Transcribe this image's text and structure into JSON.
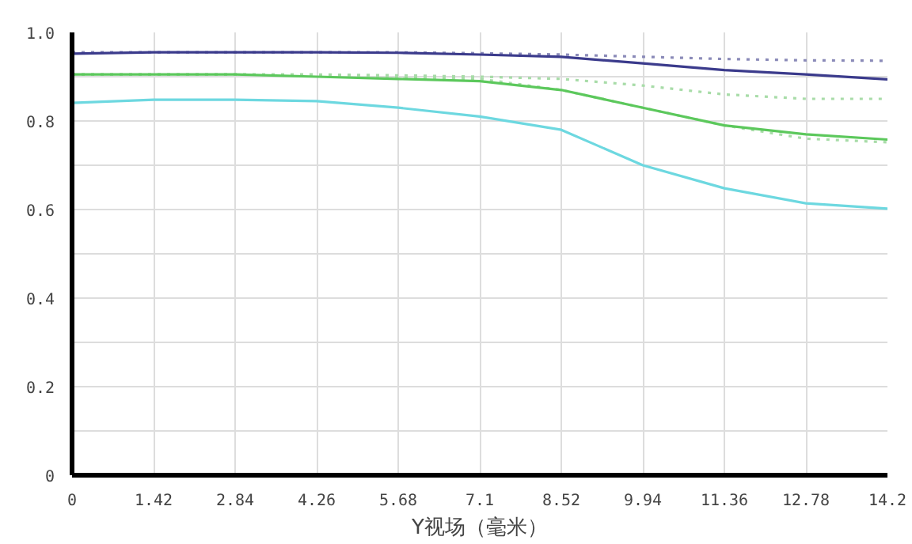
{
  "chart_data": {
    "type": "line",
    "xlabel": "Y视场（毫米）",
    "xlim": [
      0,
      14.2
    ],
    "ylim": [
      0,
      1.0
    ],
    "xticks": [
      0,
      1.42,
      2.84,
      4.26,
      5.68,
      7.1,
      8.52,
      9.94,
      11.36,
      12.78,
      14.2
    ],
    "yticks": [
      0,
      {
        "value": 0.1,
        "label": null
      },
      {
        "value": 0.2,
        "label": "0.2"
      },
      {
        "value": 0.3,
        "label": null
      },
      {
        "value": 0.4,
        "label": "0.4"
      },
      {
        "value": 0.5,
        "label": null
      },
      {
        "value": 0.6,
        "label": "0.6"
      },
      {
        "value": 0.7,
        "label": null
      },
      {
        "value": 0.8,
        "label": "0.8"
      },
      {
        "value": 0.9,
        "label": null
      },
      {
        "value": 1.0,
        "label": "1.0"
      }
    ],
    "grid": true,
    "x": [
      0,
      1.42,
      2.84,
      4.26,
      5.68,
      7.1,
      8.52,
      9.94,
      11.36,
      12.78,
      14.2
    ],
    "series": [
      {
        "color": "#8a8ab8",
        "line_style": "dotted",
        "values": [
          0.955,
          0.955,
          0.955,
          0.955,
          0.955,
          0.953,
          0.95,
          0.945,
          0.94,
          0.937,
          0.936
        ]
      },
      {
        "color": "#3b3b8c",
        "line_style": "solid",
        "values": [
          0.952,
          0.955,
          0.955,
          0.955,
          0.954,
          0.95,
          0.945,
          0.93,
          0.915,
          0.905,
          0.894
        ]
      },
      {
        "color": "#a8dca8",
        "line_style": "dotted",
        "values": [
          0.905,
          0.905,
          0.905,
          0.905,
          0.903,
          0.9,
          0.895,
          0.88,
          0.86,
          0.85,
          0.85
        ]
      },
      {
        "color": "#a8dca8",
        "line_style": "dotted",
        "values": [
          0.905,
          0.905,
          0.905,
          0.903,
          0.9,
          0.895,
          0.87,
          0.83,
          0.79,
          0.76,
          0.752
        ]
      },
      {
        "color": "#5cc85c",
        "line_style": "solid",
        "values": [
          0.905,
          0.905,
          0.905,
          0.9,
          0.895,
          0.89,
          0.87,
          0.83,
          0.79,
          0.77,
          0.758
        ]
      },
      {
        "color": "#6dd8e0",
        "line_style": "solid",
        "values": [
          0.841,
          0.848,
          0.848,
          0.845,
          0.83,
          0.81,
          0.78,
          0.7,
          0.648,
          0.614,
          0.602
        ]
      }
    ]
  }
}
